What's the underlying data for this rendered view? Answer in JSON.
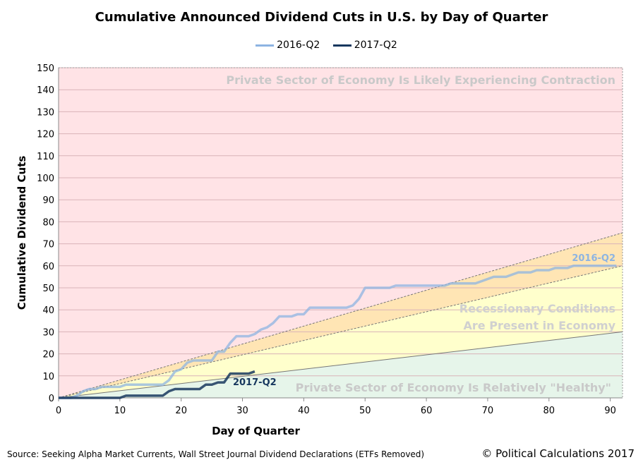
{
  "chart_data": {
    "type": "line",
    "title": "Cumulative Announced Dividend Cuts in U.S. by Day of Quarter",
    "xlabel": "Day of Quarter",
    "ylabel": "Cumulative Dividend Cuts",
    "xlim": [
      0,
      92
    ],
    "ylim": [
      0,
      150
    ],
    "xticks": [
      0,
      10,
      20,
      30,
      40,
      50,
      60,
      70,
      80,
      90
    ],
    "yticks": [
      0,
      10,
      20,
      30,
      40,
      50,
      60,
      70,
      80,
      90,
      100,
      110,
      120,
      130,
      140,
      150
    ],
    "grid": true,
    "legend": "top-center",
    "series": [
      {
        "name": "2016-Q2",
        "color": "#8db4e2",
        "x": [
          0,
          1,
          2,
          3,
          4,
          5,
          6,
          7,
          8,
          9,
          10,
          11,
          12,
          13,
          14,
          15,
          16,
          17,
          18,
          19,
          20,
          21,
          22,
          23,
          24,
          25,
          26,
          27,
          28,
          29,
          30,
          31,
          32,
          33,
          34,
          35,
          36,
          37,
          38,
          39,
          40,
          41,
          42,
          43,
          44,
          45,
          46,
          47,
          48,
          49,
          50,
          51,
          52,
          53,
          54,
          55,
          56,
          57,
          58,
          59,
          60,
          61,
          62,
          63,
          64,
          65,
          66,
          67,
          68,
          69,
          70,
          71,
          72,
          73,
          74,
          75,
          76,
          77,
          78,
          79,
          80,
          81,
          82,
          83,
          84,
          85,
          86,
          87,
          88,
          89,
          90,
          91
        ],
        "y": [
          0,
          0,
          0,
          1,
          3,
          4,
          4,
          5,
          5,
          5,
          5,
          6,
          6,
          6,
          6,
          6,
          6,
          6,
          8,
          12,
          13,
          16,
          17,
          17,
          17,
          17,
          21,
          21,
          25,
          28,
          28,
          28,
          29,
          31,
          32,
          34,
          37,
          37,
          37,
          38,
          38,
          41,
          41,
          41,
          41,
          41,
          41,
          41,
          42,
          45,
          50,
          50,
          50,
          50,
          50,
          51,
          51,
          51,
          51,
          51,
          51,
          51,
          51,
          51,
          52,
          52,
          52,
          52,
          52,
          53,
          54,
          55,
          55,
          55,
          56,
          57,
          57,
          57,
          58,
          58,
          58,
          59,
          59,
          59,
          60,
          60,
          60,
          60,
          60,
          60,
          60,
          60
        ]
      },
      {
        "name": "2017-Q2",
        "color": "#17375e",
        "x": [
          0,
          1,
          2,
          3,
          4,
          5,
          6,
          7,
          8,
          9,
          10,
          11,
          12,
          13,
          14,
          15,
          16,
          17,
          18,
          19,
          20,
          21,
          22,
          23,
          24,
          25,
          26,
          27,
          28,
          29,
          30,
          31,
          32
        ],
        "y": [
          0,
          0,
          0,
          0,
          0,
          0,
          0,
          0,
          0,
          0,
          0,
          1,
          1,
          1,
          1,
          1,
          1,
          1,
          3,
          4,
          4,
          4,
          4,
          4,
          6,
          6,
          7,
          7,
          11,
          11,
          11,
          11,
          12
        ]
      }
    ],
    "zones": [
      {
        "label": "Private Sector of Economy Is Likely Experiencing Contraction",
        "color": "#ffe3e6"
      },
      {
        "label": "Recessionary Conditions Are Present in Economy",
        "label_lines": [
          "Recessionary Conditions",
          "Are Present in Economy"
        ],
        "color": "#ffffcc"
      },
      {
        "label": "Private Sector of Economy Is Relatively \"Healthy\"",
        "color": "#e6f5ea"
      }
    ],
    "zone_lines_end_values": [
      75,
      60,
      30
    ],
    "band_color": "#ffe5b4",
    "annotations": [
      "2016-Q2",
      "2017-Q2"
    ]
  },
  "footer": {
    "source": "Source: Seeking Alpha Market Currents, Wall Street Journal Dividend Declarations (ETFs Removed)",
    "copyright": "© Political Calculations 2017"
  }
}
